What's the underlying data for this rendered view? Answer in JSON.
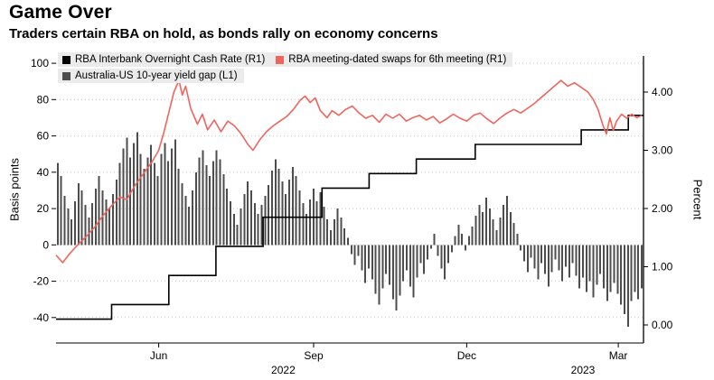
{
  "header": {
    "title": "Game Over",
    "subtitle": "Traders certain RBA on hold, as bonds rally on economy concerns"
  },
  "legend": {
    "items": [
      {
        "label": "RBA Interbank Overnight Cash Rate (R1)",
        "color": "#000000"
      },
      {
        "label": "RBA meeting-dated swaps for 6th meeting (R1)",
        "color": "#ef655e"
      },
      {
        "label": "Australia-US 10-year yield gap (L1)",
        "color": "#4d4d4d"
      }
    ]
  },
  "chart_data": {
    "type": "combo",
    "title": "Game Over",
    "subtitle": "Traders certain RBA on hold, as bonds rally on economy concerns",
    "grid": "horizontal-dotted",
    "legend_position": "top-left",
    "x_axis": {
      "unit": "days from 2022-04-01",
      "domain": [
        0,
        349
      ],
      "ticks": [
        {
          "label": "Jun",
          "day": 61
        },
        {
          "label": "Sep",
          "day": 153
        },
        {
          "label": "Dec",
          "day": 244
        },
        {
          "label": "Mar",
          "day": 334
        }
      ],
      "year_labels": [
        {
          "label": "2022",
          "day": 135
        },
        {
          "label": "2023",
          "day": 313
        }
      ]
    },
    "left_axis": {
      "label": "Basis points",
      "ticks": [
        100,
        80,
        60,
        40,
        20,
        0,
        -20,
        -40
      ],
      "range": [
        -54,
        104
      ]
    },
    "right_axis": {
      "label": "Percent",
      "ticks": [
        {
          "label": "4.00",
          "value": 4.0
        },
        {
          "label": "3.00",
          "value": 3.0
        },
        {
          "label": "2.00",
          "value": 2.0
        },
        {
          "label": "1.00",
          "value": 1.0
        },
        {
          "label": "0.00",
          "value": 0.0
        }
      ],
      "range": [
        -0.31,
        4.62
      ]
    },
    "series": [
      {
        "name": "RBA Interbank Overnight Cash Rate (R1)",
        "type": "step-line",
        "axis": "right",
        "color": "#000000",
        "end_day": 349,
        "steps": [
          [
            0,
            0.1
          ],
          [
            33,
            0.35
          ],
          [
            67,
            0.85
          ],
          [
            95,
            1.35
          ],
          [
            123,
            1.85
          ],
          [
            158,
            2.35
          ],
          [
            186,
            2.6
          ],
          [
            214,
            2.85
          ],
          [
            249,
            3.1
          ],
          [
            312,
            3.35
          ],
          [
            340,
            3.6
          ]
        ]
      },
      {
        "name": "RBA meeting-dated swaps for 6th meeting (R1)",
        "type": "line",
        "axis": "right",
        "color": "#ef655e",
        "points": [
          [
            0,
            1.2
          ],
          [
            4,
            1.07
          ],
          [
            8,
            1.22
          ],
          [
            13,
            1.38
          ],
          [
            18,
            1.52
          ],
          [
            23,
            1.68
          ],
          [
            28,
            1.88
          ],
          [
            33,
            2.05
          ],
          [
            38,
            2.2
          ],
          [
            42,
            2.15
          ],
          [
            47,
            2.4
          ],
          [
            52,
            2.6
          ],
          [
            57,
            2.8
          ],
          [
            61,
            3.0
          ],
          [
            64,
            3.3
          ],
          [
            67,
            3.65
          ],
          [
            70,
            4.0
          ],
          [
            73,
            4.2
          ],
          [
            75,
            3.95
          ],
          [
            77,
            4.1
          ],
          [
            80,
            3.72
          ],
          [
            84,
            3.45
          ],
          [
            87,
            3.62
          ],
          [
            90,
            3.35
          ],
          [
            94,
            3.52
          ],
          [
            98,
            3.32
          ],
          [
            102,
            3.5
          ],
          [
            106,
            3.42
          ],
          [
            110,
            3.28
          ],
          [
            114,
            3.1
          ],
          [
            117,
            3.0
          ],
          [
            121,
            3.18
          ],
          [
            125,
            3.32
          ],
          [
            129,
            3.42
          ],
          [
            133,
            3.5
          ],
          [
            137,
            3.58
          ],
          [
            141,
            3.7
          ],
          [
            145,
            3.86
          ],
          [
            148,
            3.93
          ],
          [
            151,
            3.82
          ],
          [
            154,
            3.9
          ],
          [
            157,
            3.68
          ],
          [
            161,
            3.56
          ],
          [
            164,
            3.68
          ],
          [
            168,
            3.6
          ],
          [
            172,
            3.7
          ],
          [
            176,
            3.76
          ],
          [
            180,
            3.64
          ],
          [
            184,
            3.55
          ],
          [
            188,
            3.6
          ],
          [
            192,
            3.48
          ],
          [
            196,
            3.62
          ],
          [
            200,
            3.55
          ],
          [
            204,
            3.62
          ],
          [
            208,
            3.5
          ],
          [
            212,
            3.56
          ],
          [
            216,
            3.6
          ],
          [
            220,
            3.52
          ],
          [
            224,
            3.58
          ],
          [
            228,
            3.47
          ],
          [
            232,
            3.54
          ],
          [
            236,
            3.62
          ],
          [
            240,
            3.55
          ],
          [
            244,
            3.5
          ],
          [
            248,
            3.6
          ],
          [
            252,
            3.64
          ],
          [
            256,
            3.54
          ],
          [
            260,
            3.46
          ],
          [
            264,
            3.56
          ],
          [
            268,
            3.64
          ],
          [
            272,
            3.7
          ],
          [
            276,
            3.64
          ],
          [
            280,
            3.72
          ],
          [
            284,
            3.8
          ],
          [
            288,
            3.9
          ],
          [
            292,
            4.0
          ],
          [
            296,
            4.1
          ],
          [
            300,
            4.2
          ],
          [
            304,
            4.1
          ],
          [
            308,
            4.16
          ],
          [
            312,
            4.08
          ],
          [
            316,
            4.0
          ],
          [
            319,
            3.88
          ],
          [
            322,
            3.7
          ],
          [
            325,
            3.42
          ],
          [
            327,
            3.28
          ],
          [
            329,
            3.56
          ],
          [
            331,
            3.34
          ],
          [
            333,
            3.5
          ],
          [
            336,
            3.62
          ],
          [
            339,
            3.55
          ],
          [
            342,
            3.62
          ],
          [
            345,
            3.56
          ],
          [
            348,
            3.6
          ]
        ]
      },
      {
        "name": "Australia-US 10-year yield gap (L1)",
        "type": "bar",
        "axis": "left",
        "color": "#4d4d4d",
        "bar_spacing_days": 2.053,
        "values": [
          45,
          38,
          27,
          20,
          14,
          24,
          34,
          30,
          22,
          15,
          23,
          31,
          38,
          30,
          25,
          20,
          28,
          36,
          45,
          53,
          59,
          48,
          56,
          62,
          50,
          42,
          48,
          55,
          45,
          38,
          50,
          56,
          46,
          53,
          58,
          42,
          34,
          27,
          21,
          30,
          40,
          48,
          52,
          44,
          38,
          46,
          52,
          47,
          39,
          31,
          24,
          17,
          11,
          20,
          28,
          35,
          30,
          23,
          17,
          22,
          27,
          33,
          41,
          47,
          42,
          35,
          28,
          36,
          43,
          38,
          30,
          23,
          17,
          25,
          31,
          24,
          29,
          21,
          14,
          8,
          14,
          20,
          15,
          9,
          4,
          -5,
          -11,
          -6,
          -14,
          -21,
          -13,
          -19,
          -27,
          -33,
          -24,
          -16,
          -22,
          -30,
          -36,
          -28,
          -20,
          -14,
          -23,
          -29,
          -18,
          -10,
          -16,
          -8,
          -2,
          6,
          -6,
          -13,
          -19,
          -10,
          -4,
          5,
          11,
          6,
          -3,
          5,
          10,
          16,
          22,
          18,
          26,
          20,
          14,
          8,
          15,
          22,
          27,
          18,
          12,
          6,
          -3,
          -9,
          -15,
          -7,
          -13,
          -19,
          -10,
          -16,
          -23,
          -15,
          -8,
          -14,
          -20,
          -12,
          -18,
          -10,
          -17,
          -24,
          -18,
          -26,
          -20,
          -29,
          -22,
          -16,
          -24,
          -31,
          -26,
          -21,
          -27,
          -33,
          -38,
          -45,
          -31,
          -26,
          -30,
          -24
        ]
      }
    ]
  }
}
